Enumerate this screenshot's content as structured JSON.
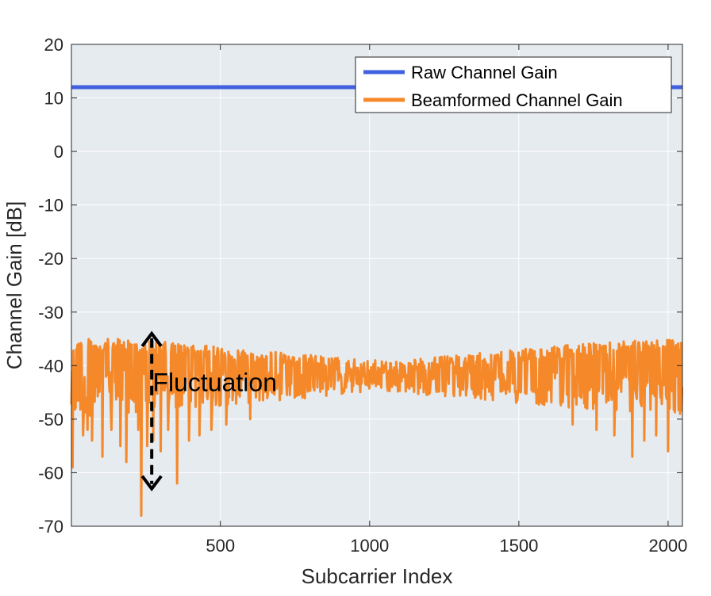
{
  "chart_data": {
    "type": "line",
    "title": "",
    "xlabel": "Subcarrier Index",
    "ylabel": "Channel Gain [dB]",
    "xlim": [
      1,
      2048
    ],
    "ylim": [
      -70,
      20
    ],
    "xticks": [
      500,
      1000,
      1500,
      2000
    ],
    "yticks": [
      20,
      10,
      0,
      -10,
      -20,
      -30,
      -40,
      -50,
      -60,
      -70
    ],
    "grid": true,
    "legend_position": "top-right",
    "colors": {
      "plot_bg": "#e6ebf0",
      "axis": "#262626",
      "grid": "#ffffff"
    },
    "series": [
      {
        "name": "Raw Channel Gain",
        "color": "#4060e0",
        "x": [
          1,
          2048
        ],
        "y": [
          12,
          12
        ]
      },
      {
        "name": "Beamformed Channel Gain",
        "color": "#f5892a",
        "description_model": "upper_envelope_and_lower_envelope",
        "x": [
          1,
          100,
          200,
          300,
          400,
          500,
          600,
          700,
          800,
          900,
          1000,
          1100,
          1200,
          1300,
          1400,
          1500,
          1600,
          1700,
          1800,
          1900,
          2000,
          2048
        ],
        "upper": [
          -35,
          -35,
          -35,
          -35.5,
          -36,
          -36.5,
          -37,
          -37.5,
          -38,
          -38.5,
          -39,
          -39,
          -38.5,
          -38,
          -37.5,
          -37,
          -36.5,
          -36,
          -35.5,
          -35,
          -35,
          -35
        ],
        "lower": [
          -50,
          -49,
          -49,
          -48.5,
          -48,
          -47.5,
          -47,
          -46.5,
          -46,
          -45.5,
          -45,
          -45,
          -45.5,
          -46,
          -46.5,
          -47,
          -47.5,
          -48,
          -48.5,
          -49,
          -49,
          -49
        ],
        "deep_dips": [
          {
            "x": 5,
            "y": -59
          },
          {
            "x": 40,
            "y": -53
          },
          {
            "x": 55,
            "y": -52
          },
          {
            "x": 70,
            "y": -54
          },
          {
            "x": 105,
            "y": -57
          },
          {
            "x": 135,
            "y": -52
          },
          {
            "x": 165,
            "y": -55
          },
          {
            "x": 185,
            "y": -58
          },
          {
            "x": 225,
            "y": -52
          },
          {
            "x": 235,
            "y": -68
          },
          {
            "x": 255,
            "y": -55
          },
          {
            "x": 275,
            "y": -54
          },
          {
            "x": 300,
            "y": -56
          },
          {
            "x": 325,
            "y": -52
          },
          {
            "x": 355,
            "y": -62
          },
          {
            "x": 395,
            "y": -54
          },
          {
            "x": 430,
            "y": -53
          },
          {
            "x": 470,
            "y": -52
          },
          {
            "x": 520,
            "y": -51
          },
          {
            "x": 600,
            "y": -50
          },
          {
            "x": 1680,
            "y": -51
          },
          {
            "x": 1760,
            "y": -52
          },
          {
            "x": 1820,
            "y": -53
          },
          {
            "x": 1880,
            "y": -57
          },
          {
            "x": 1920,
            "y": -54
          },
          {
            "x": 1960,
            "y": -53
          },
          {
            "x": 2000,
            "y": -56
          },
          {
            "x": 2040,
            "y": -49
          }
        ]
      }
    ],
    "annotations": [
      {
        "text": "Fluctuation",
        "x": 300,
        "y": -43,
        "arrow": {
          "x": 270,
          "y_from": -34,
          "y_to": -63,
          "style": "dashed-double"
        }
      }
    ]
  }
}
